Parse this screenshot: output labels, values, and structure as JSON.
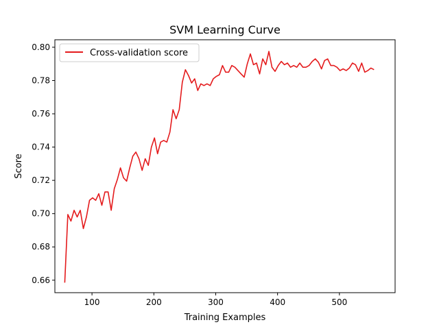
{
  "chart_data": {
    "type": "line",
    "title": "SVM Learning Curve",
    "xlabel": "Training Examples",
    "ylabel": "Score",
    "xlim": [
      40,
      590
    ],
    "ylim": [
      0.6525,
      0.8045
    ],
    "xticks": [
      100,
      200,
      300,
      400,
      500
    ],
    "yticks": [
      0.66,
      0.68,
      0.7,
      0.72,
      0.74,
      0.76,
      0.78,
      0.8
    ],
    "ytick_labels": [
      "0.66",
      "0.68",
      "0.70",
      "0.72",
      "0.74",
      "0.76",
      "0.78",
      "0.80"
    ],
    "grid": false,
    "legend": {
      "position": "upper-left"
    },
    "series": [
      {
        "name": "Cross-validation score",
        "color": "#e41a1c",
        "points": [
          [
            56,
            0.6585
          ],
          [
            61,
            0.6995
          ],
          [
            66,
            0.6955
          ],
          [
            71,
            0.702
          ],
          [
            76,
            0.698
          ],
          [
            81,
            0.702
          ],
          [
            86,
            0.691
          ],
          [
            91,
            0.698
          ],
          [
            96,
            0.708
          ],
          [
            101,
            0.7095
          ],
          [
            106,
            0.708
          ],
          [
            111,
            0.712
          ],
          [
            116,
            0.705
          ],
          [
            121,
            0.713
          ],
          [
            126,
            0.713
          ],
          [
            131,
            0.702
          ],
          [
            136,
            0.715
          ],
          [
            141,
            0.7205
          ],
          [
            146,
            0.7275
          ],
          [
            151,
            0.7215
          ],
          [
            156,
            0.7195
          ],
          [
            161,
            0.7275
          ],
          [
            166,
            0.7345
          ],
          [
            171,
            0.737
          ],
          [
            176,
            0.733
          ],
          [
            181,
            0.726
          ],
          [
            186,
            0.733
          ],
          [
            191,
            0.729
          ],
          [
            196,
            0.74
          ],
          [
            201,
            0.7455
          ],
          [
            206,
            0.736
          ],
          [
            211,
            0.743
          ],
          [
            216,
            0.744
          ],
          [
            221,
            0.743
          ],
          [
            226,
            0.749
          ],
          [
            231,
            0.7625
          ],
          [
            236,
            0.757
          ],
          [
            241,
            0.7625
          ],
          [
            246,
            0.779
          ],
          [
            251,
            0.7865
          ],
          [
            256,
            0.783
          ],
          [
            261,
            0.7785
          ],
          [
            266,
            0.781
          ],
          [
            271,
            0.774
          ],
          [
            276,
            0.778
          ],
          [
            281,
            0.777
          ],
          [
            286,
            0.778
          ],
          [
            291,
            0.777
          ],
          [
            296,
            0.781
          ],
          [
            301,
            0.7825
          ],
          [
            306,
            0.7835
          ],
          [
            311,
            0.789
          ],
          [
            316,
            0.785
          ],
          [
            321,
            0.785
          ],
          [
            326,
            0.789
          ],
          [
            331,
            0.788
          ],
          [
            336,
            0.786
          ],
          [
            341,
            0.784
          ],
          [
            346,
            0.782
          ],
          [
            351,
            0.79
          ],
          [
            356,
            0.796
          ],
          [
            361,
            0.7895
          ],
          [
            366,
            0.7905
          ],
          [
            371,
            0.784
          ],
          [
            376,
            0.793
          ],
          [
            381,
            0.7895
          ],
          [
            386,
            0.7975
          ],
          [
            391,
            0.788
          ],
          [
            396,
            0.7855
          ],
          [
            401,
            0.789
          ],
          [
            406,
            0.7915
          ],
          [
            411,
            0.7895
          ],
          [
            416,
            0.7905
          ],
          [
            421,
            0.788
          ],
          [
            426,
            0.789
          ],
          [
            431,
            0.788
          ],
          [
            436,
            0.7905
          ],
          [
            441,
            0.788
          ],
          [
            446,
            0.788
          ],
          [
            451,
            0.789
          ],
          [
            456,
            0.7915
          ],
          [
            461,
            0.793
          ],
          [
            466,
            0.791
          ],
          [
            471,
            0.787
          ],
          [
            476,
            0.792
          ],
          [
            481,
            0.793
          ],
          [
            486,
            0.789
          ],
          [
            491,
            0.789
          ],
          [
            496,
            0.788
          ],
          [
            501,
            0.786
          ],
          [
            506,
            0.787
          ],
          [
            511,
            0.786
          ],
          [
            516,
            0.7875
          ],
          [
            521,
            0.7905
          ],
          [
            526,
            0.7895
          ],
          [
            531,
            0.7855
          ],
          [
            536,
            0.7905
          ],
          [
            541,
            0.785
          ],
          [
            546,
            0.786
          ],
          [
            551,
            0.7875
          ],
          [
            556,
            0.7865
          ]
        ]
      }
    ]
  }
}
